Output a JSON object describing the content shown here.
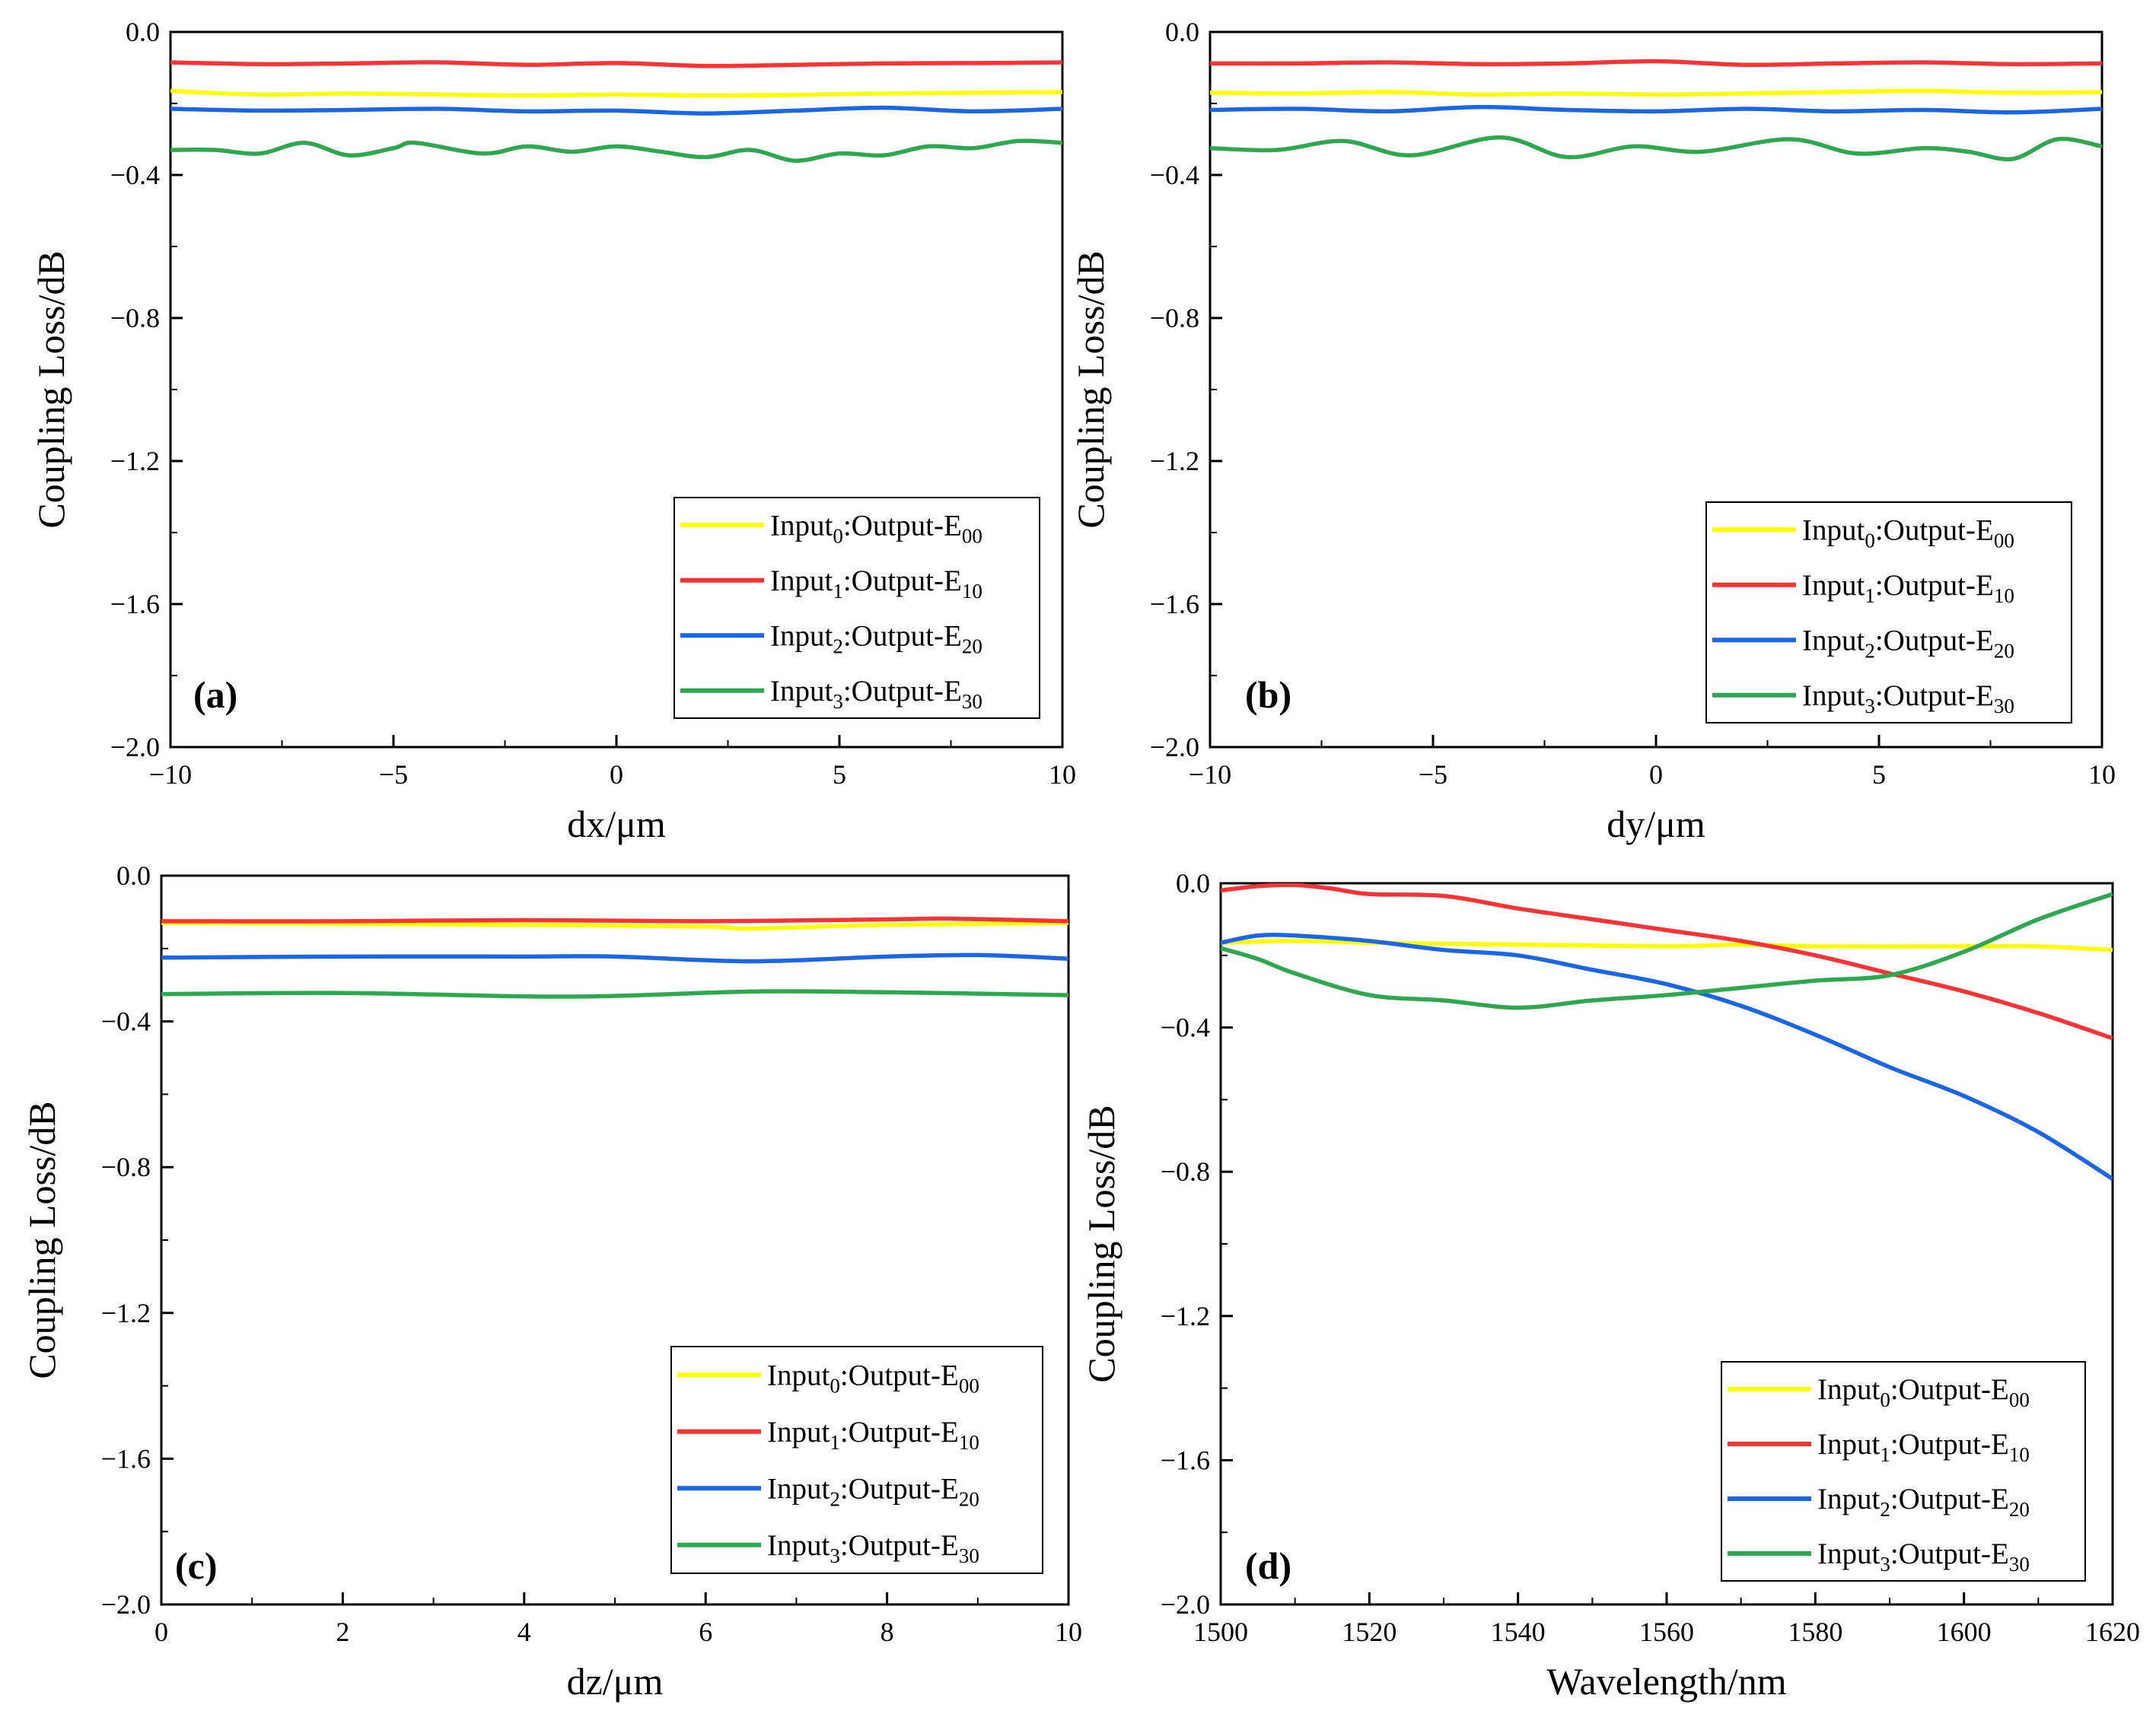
{
  "chart_data": [
    {
      "type": "line",
      "panel_label": "(a)",
      "xlabel": "dx/μm",
      "ylabel": "Coupling Loss/dB",
      "xlim": [
        -10,
        10
      ],
      "ylim": [
        -2.0,
        0.0
      ],
      "xticks": [
        -10,
        -5,
        0,
        5,
        10
      ],
      "xtick_labels": [
        "−10",
        "−5",
        "0",
        "5",
        "10"
      ],
      "yticks": [
        0.0,
        -0.4,
        -0.8,
        -1.2,
        -1.6,
        -2.0
      ],
      "ytick_labels": [
        "0.0",
        "−0.4",
        "−0.8",
        "−1.2",
        "−1.6",
        "−2.0"
      ],
      "legend_position": "bottom-right",
      "series": [
        {
          "name": "Input0:Output-E00",
          "name_main": "Input",
          "name_sub1": "0",
          "name_mid": ":Output-E",
          "name_sub2": "00",
          "color": "#ffff00",
          "x": [
            -10,
            -8,
            -6,
            -4,
            -2,
            0,
            2,
            4,
            6,
            8,
            10
          ],
          "y": [
            -0.165,
            -0.175,
            -0.172,
            -0.175,
            -0.178,
            -0.175,
            -0.178,
            -0.176,
            -0.172,
            -0.17,
            -0.168
          ]
        },
        {
          "name": "Input1:Output-E10",
          "name_main": "Input",
          "name_sub1": "1",
          "name_mid": ":Output-E",
          "name_sub2": "10",
          "color": "#ff3333",
          "x": [
            -10,
            -8,
            -6,
            -4,
            -2,
            0,
            2,
            4,
            6,
            8,
            10
          ],
          "y": [
            -0.085,
            -0.09,
            -0.088,
            -0.085,
            -0.092,
            -0.087,
            -0.095,
            -0.092,
            -0.088,
            -0.087,
            -0.085
          ]
        },
        {
          "name": "Input2:Output-E20",
          "name_main": "Input",
          "name_sub1": "2",
          "name_mid": ":Output-E",
          "name_sub2": "20",
          "color": "#1a66e6",
          "x": [
            -10,
            -8,
            -6,
            -4,
            -2,
            0,
            2,
            4,
            6,
            8,
            10
          ],
          "y": [
            -0.215,
            -0.22,
            -0.218,
            -0.215,
            -0.222,
            -0.22,
            -0.228,
            -0.22,
            -0.212,
            -0.222,
            -0.215
          ]
        },
        {
          "name": "Input3:Output-E30",
          "name_main": "Input",
          "name_sub1": "3",
          "name_mid": ":Output-E",
          "name_sub2": "30",
          "color": "#2ea84f",
          "x": [
            -10,
            -9,
            -8,
            -7,
            -6,
            -5,
            -4.5,
            -3,
            -2,
            -1,
            0,
            1,
            2,
            3,
            4,
            5,
            6,
            7,
            8,
            9,
            10
          ],
          "y": [
            -0.33,
            -0.33,
            -0.34,
            -0.31,
            -0.345,
            -0.325,
            -0.31,
            -0.34,
            -0.32,
            -0.335,
            -0.32,
            -0.335,
            -0.35,
            -0.33,
            -0.36,
            -0.34,
            -0.345,
            -0.32,
            -0.325,
            -0.305,
            -0.31
          ]
        }
      ]
    },
    {
      "type": "line",
      "panel_label": "(b)",
      "xlabel": "dy/μm",
      "ylabel": "Coupling Loss/dB",
      "xlim": [
        -10,
        10
      ],
      "ylim": [
        -2.0,
        0.0
      ],
      "xticks": [
        -10,
        -5,
        0,
        5,
        10
      ],
      "xtick_labels": [
        "−10",
        "−5",
        "0",
        "5",
        "10"
      ],
      "yticks": [
        0.0,
        -0.4,
        -0.8,
        -1.2,
        -1.6,
        -2.0
      ],
      "ytick_labels": [
        "0.0",
        "−0.4",
        "−0.8",
        "−1.2",
        "−1.6",
        "−2.0"
      ],
      "legend_position": "bottom-right",
      "series": [
        {
          "name": "Input0:Output-E00",
          "name_main": "Input",
          "name_sub1": "0",
          "name_mid": ":Output-E",
          "name_sub2": "00",
          "color": "#ffff00",
          "x": [
            -10,
            -8,
            -6,
            -4,
            -2,
            0,
            2,
            4,
            6,
            8,
            10
          ],
          "y": [
            -0.17,
            -0.172,
            -0.168,
            -0.175,
            -0.172,
            -0.175,
            -0.172,
            -0.168,
            -0.165,
            -0.17,
            -0.168
          ]
        },
        {
          "name": "Input1:Output-E10",
          "name_main": "Input",
          "name_sub1": "1",
          "name_mid": ":Output-E",
          "name_sub2": "10",
          "color": "#ff3333",
          "x": [
            -10,
            -8,
            -6,
            -4,
            -2,
            0,
            2,
            4,
            6,
            8,
            10
          ],
          "y": [
            -0.088,
            -0.088,
            -0.085,
            -0.09,
            -0.088,
            -0.082,
            -0.092,
            -0.088,
            -0.085,
            -0.09,
            -0.088
          ]
        },
        {
          "name": "Input2:Output-E20",
          "name_main": "Input",
          "name_sub1": "2",
          "name_mid": ":Output-E",
          "name_sub2": "20",
          "color": "#1a66e6",
          "x": [
            -10,
            -8,
            -6,
            -4,
            -2,
            0,
            2,
            4,
            6,
            8,
            10
          ],
          "y": [
            -0.218,
            -0.215,
            -0.222,
            -0.21,
            -0.218,
            -0.222,
            -0.215,
            -0.222,
            -0.218,
            -0.225,
            -0.215
          ]
        },
        {
          "name": "Input3:Output-E30",
          "name_main": "Input",
          "name_sub1": "3",
          "name_mid": ":Output-E",
          "name_sub2": "30",
          "color": "#2ea84f",
          "x": [
            -10,
            -8.5,
            -7,
            -5.5,
            -3.5,
            -2,
            -0.5,
            1,
            3,
            4.5,
            6,
            7,
            8,
            9,
            10
          ],
          "y": [
            -0.325,
            -0.33,
            -0.305,
            -0.345,
            -0.295,
            -0.35,
            -0.32,
            -0.335,
            -0.3,
            -0.34,
            -0.325,
            -0.335,
            -0.355,
            -0.3,
            -0.32
          ]
        }
      ]
    },
    {
      "type": "line",
      "panel_label": "(c)",
      "xlabel": "dz/μm",
      "ylabel": "Coupling Loss/dB",
      "xlim": [
        0,
        10
      ],
      "ylim": [
        -2.0,
        0.0
      ],
      "xticks": [
        0,
        2,
        4,
        6,
        8,
        10
      ],
      "xtick_labels": [
        "0",
        "2",
        "4",
        "6",
        "8",
        "10"
      ],
      "yticks": [
        0.0,
        -0.4,
        -0.8,
        -1.2,
        -1.6,
        -2.0
      ],
      "ytick_labels": [
        "0.0",
        "−0.4",
        "−0.8",
        "−1.2",
        "−1.6",
        "−2.0"
      ],
      "legend_position": "bottom-right",
      "series": [
        {
          "name": "Input0:Output-E00",
          "name_main": "Input",
          "name_sub1": "0",
          "name_mid": ":Output-E",
          "name_sub2": "00",
          "color": "#ffff00",
          "x": [
            0,
            2,
            4,
            6,
            6.5,
            8,
            10
          ],
          "y": [
            -0.13,
            -0.132,
            -0.135,
            -0.14,
            -0.145,
            -0.135,
            -0.13
          ]
        },
        {
          "name": "Input1:Output-E10",
          "name_main": "Input",
          "name_sub1": "1",
          "name_mid": ":Output-E",
          "name_sub2": "10",
          "color": "#ff3333",
          "x": [
            0,
            2,
            4,
            6,
            8,
            8.7,
            10
          ],
          "y": [
            -0.125,
            -0.125,
            -0.122,
            -0.125,
            -0.12,
            -0.118,
            -0.125
          ]
        },
        {
          "name": "Input2:Output-E20",
          "name_main": "Input",
          "name_sub1": "2",
          "name_mid": ":Output-E",
          "name_sub2": "20",
          "color": "#1a66e6",
          "x": [
            0,
            2,
            4,
            5,
            6.5,
            8,
            9,
            10
          ],
          "y": [
            -0.225,
            -0.222,
            -0.222,
            -0.222,
            -0.235,
            -0.222,
            -0.218,
            -0.228
          ]
        },
        {
          "name": "Input3:Output-E30",
          "name_main": "Input",
          "name_sub1": "3",
          "name_mid": ":Output-E",
          "name_sub2": "30",
          "color": "#2ea84f",
          "x": [
            0,
            2,
            4.5,
            6.5,
            8,
            10
          ],
          "y": [
            -0.325,
            -0.322,
            -0.332,
            -0.318,
            -0.32,
            -0.328
          ]
        }
      ]
    },
    {
      "type": "line",
      "panel_label": "(d)",
      "xlabel": "Wavelength/nm",
      "ylabel": "Coupling Loss/dB",
      "xlim": [
        1500,
        1620
      ],
      "ylim": [
        -2.0,
        0.0
      ],
      "xticks": [
        1500,
        1520,
        1540,
        1560,
        1580,
        1600,
        1620
      ],
      "xtick_labels": [
        "1500",
        "1520",
        "1540",
        "1560",
        "1580",
        "1600",
        "1620"
      ],
      "yticks": [
        0.0,
        -0.4,
        -0.8,
        -1.2,
        -1.6,
        -2.0
      ],
      "ytick_labels": [
        "0.0",
        "−0.4",
        "−0.8",
        "−1.2",
        "−1.6",
        "−2.0"
      ],
      "legend_position": "bottom-right",
      "series": [
        {
          "name": "Input0:Output-E00",
          "name_main": "Input",
          "name_sub1": "0",
          "name_mid": ":Output-E",
          "name_sub2": "00",
          "color": "#ffff00",
          "x": [
            1500,
            1510,
            1520,
            1540,
            1560,
            1570,
            1580,
            1600,
            1610,
            1620
          ],
          "y": [
            -0.165,
            -0.16,
            -0.165,
            -0.17,
            -0.175,
            -0.17,
            -0.175,
            -0.175,
            -0.175,
            -0.185
          ]
        },
        {
          "name": "Input1:Output-E10",
          "name_main": "Input",
          "name_sub1": "1",
          "name_mid": ":Output-E",
          "name_sub2": "10",
          "color": "#ff3333",
          "x": [
            1500,
            1505,
            1510,
            1515,
            1520,
            1530,
            1540,
            1550,
            1560,
            1570,
            1580,
            1590,
            1600,
            1610,
            1620
          ],
          "y": [
            -0.02,
            -0.008,
            -0.005,
            -0.015,
            -0.03,
            -0.035,
            -0.07,
            -0.1,
            -0.13,
            -0.16,
            -0.2,
            -0.25,
            -0.3,
            -0.36,
            -0.43
          ]
        },
        {
          "name": "Input2:Output-E20",
          "name_main": "Input",
          "name_sub1": "2",
          "name_mid": ":Output-E",
          "name_sub2": "20",
          "color": "#1a66e6",
          "x": [
            1500,
            1505,
            1510,
            1520,
            1530,
            1540,
            1550,
            1560,
            1570,
            1580,
            1590,
            1600,
            1610,
            1620
          ],
          "y": [
            -0.165,
            -0.145,
            -0.145,
            -0.16,
            -0.185,
            -0.2,
            -0.24,
            -0.28,
            -0.34,
            -0.42,
            -0.51,
            -0.59,
            -0.69,
            -0.82
          ]
        },
        {
          "name": "Input3:Output-E30",
          "name_main": "Input",
          "name_sub1": "3",
          "name_mid": ":Output-E",
          "name_sub2": "30",
          "color": "#2ea84f",
          "x": [
            1500,
            1505,
            1510,
            1520,
            1530,
            1540,
            1550,
            1560,
            1570,
            1580,
            1590,
            1600,
            1610,
            1620
          ],
          "y": [
            -0.18,
            -0.21,
            -0.25,
            -0.31,
            -0.325,
            -0.345,
            -0.325,
            -0.31,
            -0.29,
            -0.27,
            -0.255,
            -0.19,
            -0.1,
            -0.03
          ]
        }
      ]
    }
  ]
}
